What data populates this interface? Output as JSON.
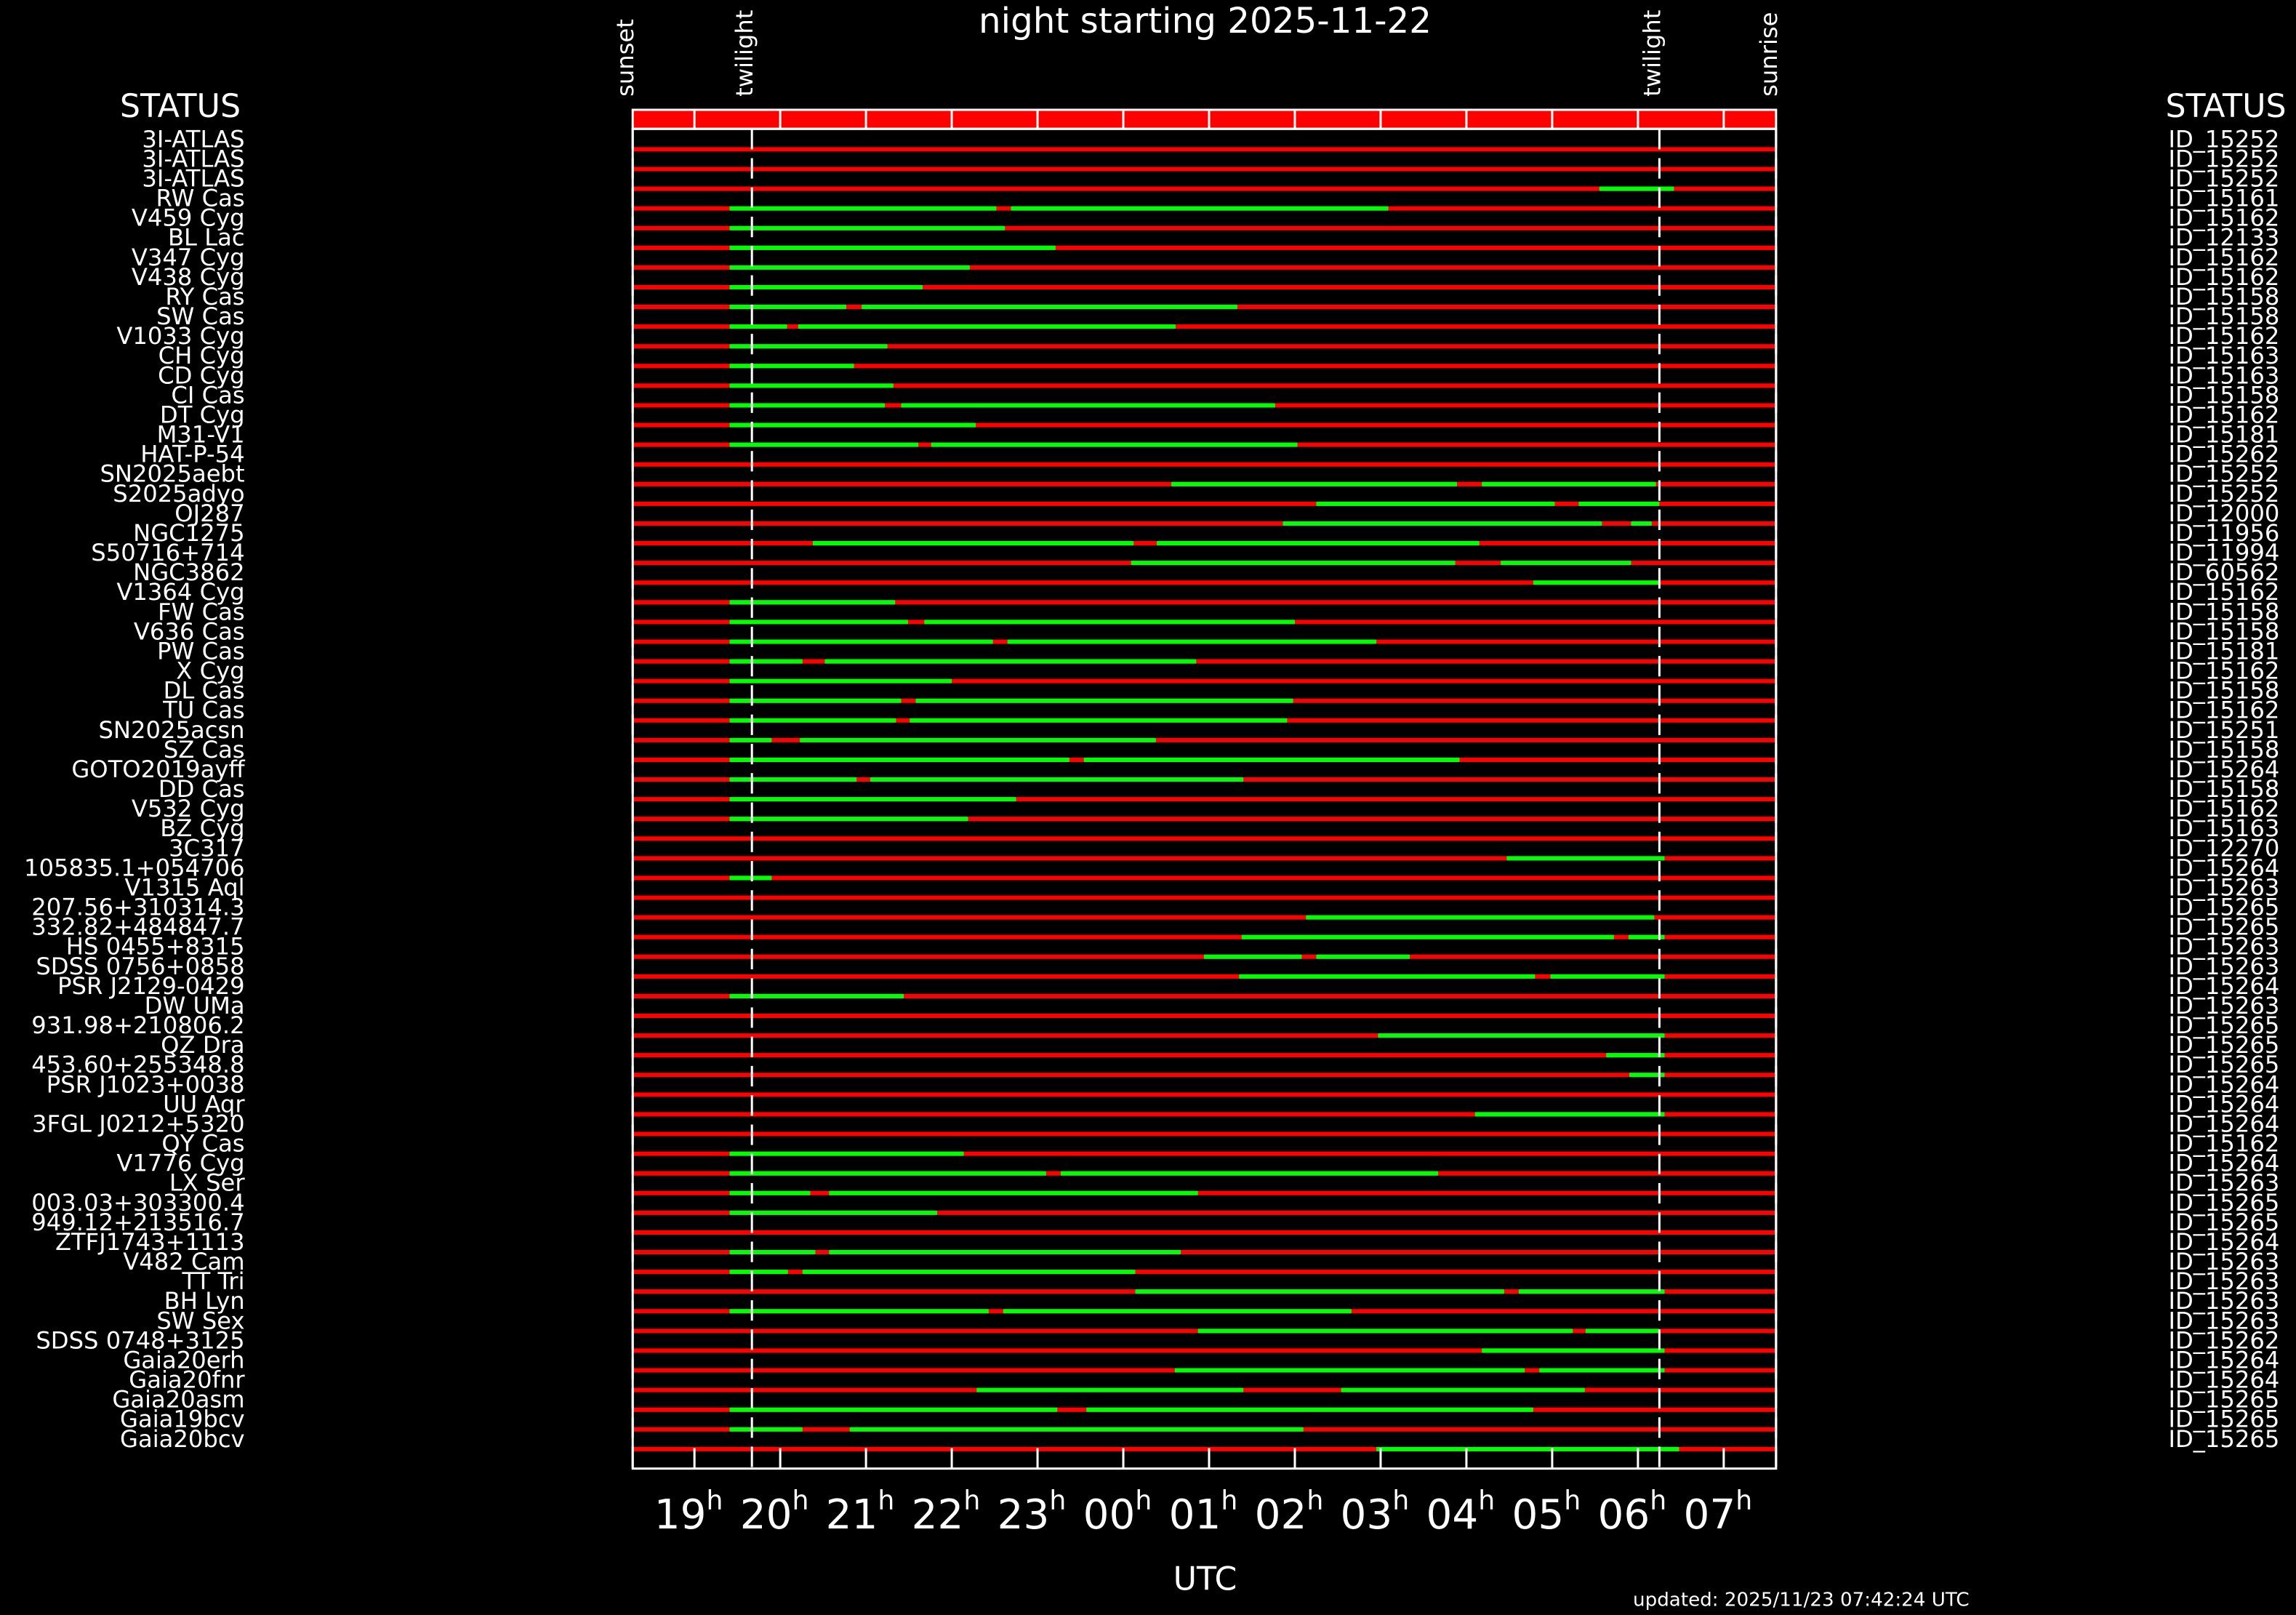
{
  "chart_data": {
    "type": "timeline",
    "title": "night starting 2025-11-22",
    "xlabel": "UTC",
    "status_header": "STATUS",
    "updated": "updated: 2025/11/23 07:42:24 UTC",
    "xlim": [
      18.28,
      31.61
    ],
    "xticks": [
      19,
      20,
      21,
      22,
      23,
      {
        "value": 24,
        "label": "00"
      },
      {
        "value": 25,
        "label": "01"
      },
      {
        "value": 26,
        "label": "02"
      },
      {
        "value": 27,
        "label": "03"
      },
      {
        "value": 28,
        "label": "04"
      },
      {
        "value": 29,
        "label": "05"
      },
      {
        "value": 30,
        "label": "06"
      },
      {
        "value": 31,
        "label": "07"
      }
    ],
    "tick_unit": "h",
    "events": [
      {
        "label": "sunset",
        "value": 18.28
      },
      {
        "label": "twilight",
        "value": 19.67
      },
      {
        "label": "twilight",
        "value": 30.25
      },
      {
        "label": "sunrise",
        "value": 31.61
      }
    ],
    "track_color": "#ff0000",
    "window_color": "#00ff00",
    "categories": [
      "3I-ATLAS",
      "3I-ATLAS",
      "3I-ATLAS",
      "RW Cas",
      "V459 Cyg",
      "BL Lac",
      "V347 Cyg",
      "V438 Cyg",
      "RY Cas",
      "SW Cas",
      "V1033 Cyg",
      "CH Cyg",
      "CD Cyg",
      "CI Cas",
      "DT Cyg",
      "M31-V1",
      "HAT-P-54",
      "SN2025aebt",
      "S2025adyo",
      "OJ287",
      "NGC1275",
      "S50716+714",
      "NGC3862",
      "V1364 Cyg",
      "FW Cas",
      "V636 Cas",
      "PW Cas",
      "X Cyg",
      "DL Cas",
      "TU Cas",
      "SN2025acsn",
      "SZ Cas",
      "GOTO2019ayff",
      "DD Cas",
      "V532 Cyg",
      "BZ Cyg",
      "3C317",
      "105835.1+054706",
      "V1315 Aql",
      "207.56+310314.3",
      "332.82+484847.7",
      "HS 0455+8315",
      "SDSS 0756+0858",
      "PSR J2129-0429",
      "DW UMa",
      "931.98+210806.2",
      "QZ Dra",
      "453.60+255348.8",
      "PSR J1023+0038",
      "UU Aqr",
      "3FGL J0212+5320",
      "QY Cas",
      "V1776 Cyg",
      "LX Ser",
      "003.03+303300.4",
      "949.12+213516.7",
      "ZTFJ1743+1113",
      "V482 Cam",
      "TT Tri",
      "BH Lyn",
      "SW Sex",
      "SDSS 0748+3125",
      "Gaia20erh",
      "Gaia20fnr",
      "Gaia20asm",
      "Gaia19bcv",
      "Gaia20bcv"
    ],
    "ids": [
      "ID_15252",
      "ID_15252",
      "ID_15252",
      "ID_15161",
      "ID_15162",
      "ID_12133",
      "ID_15162",
      "ID_15162",
      "ID_15158",
      "ID_15158",
      "ID_15162",
      "ID_15163",
      "ID_15163",
      "ID_15158",
      "ID_15162",
      "ID_15181",
      "ID_15262",
      "ID_15252",
      "ID_15252",
      "ID_12000",
      "ID_11956",
      "ID_11994",
      "ID_60562",
      "ID_15162",
      "ID_15158",
      "ID_15158",
      "ID_15181",
      "ID_15162",
      "ID_15158",
      "ID_15162",
      "ID_15251",
      "ID_15158",
      "ID_15264",
      "ID_15158",
      "ID_15162",
      "ID_15163",
      "ID_12270",
      "ID_15264",
      "ID_15263",
      "ID_15265",
      "ID_15265",
      "ID_15263",
      "ID_15263",
      "ID_15264",
      "ID_15263",
      "ID_15265",
      "ID_15265",
      "ID_15265",
      "ID_15264",
      "ID_15264",
      "ID_15264",
      "ID_15162",
      "ID_15264",
      "ID_15263",
      "ID_15265",
      "ID_15265",
      "ID_15264",
      "ID_15263",
      "ID_15263",
      "ID_15263",
      "ID_15263",
      "ID_15262",
      "ID_15264",
      "ID_15264",
      "ID_15265",
      "ID_15265",
      "ID_15265"
    ],
    "windows": [
      [],
      [],
      [
        [
          29.55,
          30.42
        ]
      ],
      [
        [
          19.41,
          22.52
        ],
        [
          22.69,
          27.09
        ]
      ],
      [
        [
          19.41,
          22.62
        ]
      ],
      [
        [
          19.41,
          23.21
        ]
      ],
      [
        [
          19.41,
          22.21
        ]
      ],
      [
        [
          19.41,
          21.66
        ]
      ],
      [
        [
          19.41,
          20.77
        ],
        [
          20.95,
          25.33
        ]
      ],
      [
        [
          19.41,
          20.08
        ],
        [
          20.21,
          24.61
        ]
      ],
      [
        [
          19.41,
          21.25
        ]
      ],
      [
        [
          19.41,
          20.86
        ]
      ],
      [
        [
          19.41,
          21.32
        ]
      ],
      [
        [
          19.41,
          21.22
        ],
        [
          21.41,
          25.77
        ]
      ],
      [
        [
          19.41,
          22.28
        ]
      ],
      [
        [
          19.41,
          21.61
        ],
        [
          21.76,
          26.03
        ]
      ],
      [],
      [
        [
          24.56,
          27.89
        ],
        [
          28.18,
          30.21
        ]
      ],
      [
        [
          26.25,
          29.03
        ],
        [
          29.31,
          30.25
        ]
      ],
      [
        [
          25.86,
          29.58
        ],
        [
          29.92,
          30.16
        ]
      ],
      [
        [
          20.38,
          24.12
        ],
        [
          24.39,
          28.15
        ]
      ],
      [
        [
          24.09,
          27.87
        ],
        [
          28.4,
          29.92
        ]
      ],
      [
        [
          28.78,
          30.25
        ]
      ],
      [
        [
          19.41,
          21.34
        ]
      ],
      [
        [
          19.41,
          21.49
        ],
        [
          21.68,
          26.0
        ]
      ],
      [
        [
          19.41,
          22.48
        ],
        [
          22.65,
          26.95
        ]
      ],
      [
        [
          19.41,
          20.26
        ],
        [
          20.52,
          24.85
        ]
      ],
      [
        [
          19.41,
          22.0
        ]
      ],
      [
        [
          19.41,
          21.41
        ],
        [
          21.58,
          25.98
        ]
      ],
      [
        [
          19.41,
          21.35
        ],
        [
          21.51,
          25.91
        ]
      ],
      [
        [
          19.41,
          19.9
        ],
        [
          20.23,
          24.38
        ]
      ],
      [
        [
          19.41,
          23.37
        ],
        [
          23.54,
          27.92
        ]
      ],
      [
        [
          19.41,
          20.89
        ],
        [
          21.05,
          25.4
        ]
      ],
      [
        [
          19.41,
          22.75
        ]
      ],
      [
        [
          19.41,
          22.19
        ]
      ],
      [],
      [
        [
          28.47,
          30.31
        ]
      ],
      [
        [
          19.41,
          19.9
        ]
      ],
      [],
      [
        [
          26.13,
          30.19
        ]
      ],
      [
        [
          25.38,
          29.72
        ],
        [
          29.89,
          30.31
        ]
      ],
      [
        [
          24.94,
          26.08
        ],
        [
          26.25,
          27.34
        ]
      ],
      [
        [
          25.35,
          28.8
        ],
        [
          28.98,
          30.31
        ]
      ],
      [
        [
          19.41,
          21.44
        ]
      ],
      [],
      [
        [
          26.97,
          30.31
        ]
      ],
      [
        [
          29.63,
          30.31
        ]
      ],
      [
        [
          29.9,
          30.31
        ]
      ],
      [],
      [
        [
          28.1,
          30.31
        ]
      ],
      [],
      [
        [
          19.41,
          22.14
        ]
      ],
      [
        [
          19.41,
          23.1
        ],
        [
          23.27,
          27.67
        ]
      ],
      [
        [
          19.41,
          20.35
        ],
        [
          20.57,
          24.87
        ]
      ],
      [
        [
          19.41,
          21.83
        ]
      ],
      [],
      [
        [
          19.41,
          20.41
        ],
        [
          20.57,
          24.67
        ]
      ],
      [
        [
          19.41,
          20.09
        ],
        [
          20.26,
          24.14
        ]
      ],
      [
        [
          24.14,
          28.44
        ],
        [
          28.61,
          30.31
        ]
      ],
      [
        [
          19.41,
          22.43
        ],
        [
          22.6,
          26.66
        ]
      ],
      [
        [
          24.87,
          29.24
        ],
        [
          29.39,
          30.25
        ]
      ],
      [
        [
          28.18,
          30.31
        ]
      ],
      [
        [
          24.6,
          28.68
        ],
        [
          28.85,
          30.31
        ]
      ],
      [
        [
          22.29,
          25.4
        ],
        [
          26.54,
          29.38
        ]
      ],
      [
        [
          19.41,
          23.23
        ],
        [
          23.57,
          28.78
        ]
      ],
      [
        [
          19.41,
          20.26
        ],
        [
          20.81,
          26.1
        ]
      ],
      [
        [
          26.95,
          30.48
        ]
      ]
    ]
  }
}
